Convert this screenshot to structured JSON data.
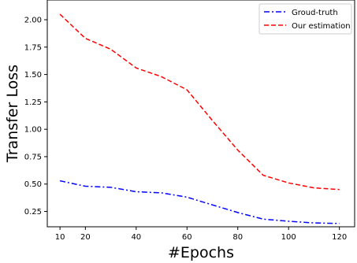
{
  "chart_data": {
    "type": "line",
    "xlabel": "#Epochs",
    "ylabel": "Transfer Loss",
    "xlim": [
      5,
      126
    ],
    "ylim": [
      0.11,
      2.18
    ],
    "xticks": [
      "10",
      "20",
      "40",
      "60",
      "80",
      "100",
      "120"
    ],
    "yticks": [
      "0.25",
      "0.50",
      "0.75",
      "1.00",
      "1.25",
      "1.50",
      "1.75",
      "2.00"
    ],
    "grid": false,
    "legend_position": "top-right",
    "x": [
      10,
      20,
      30,
      40,
      50,
      60,
      70,
      80,
      90,
      100,
      110,
      120
    ],
    "series": [
      {
        "name": "Groud-truth",
        "color": "#0000ff",
        "style": "dashdot",
        "values": [
          0.53,
          0.48,
          0.47,
          0.43,
          0.42,
          0.38,
          0.31,
          0.24,
          0.18,
          0.16,
          0.145,
          0.14
        ]
      },
      {
        "name": "Our estimation",
        "color": "#ff0000",
        "style": "dashed",
        "values": [
          2.05,
          1.83,
          1.73,
          1.56,
          1.48,
          1.36,
          1.08,
          0.81,
          0.58,
          0.51,
          0.465,
          0.45
        ]
      }
    ]
  }
}
